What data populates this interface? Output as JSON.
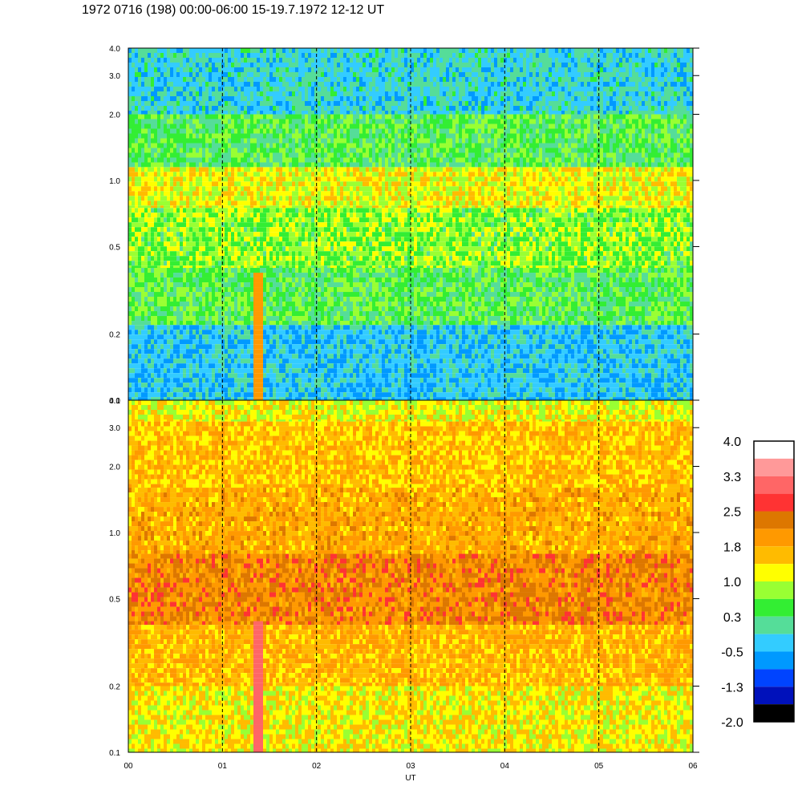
{
  "title": "1972 0716 (198) 00:00-06:00 15-19.7.1972  12-12 UT",
  "chart_data": [
    {
      "type": "heatmap",
      "panel": "top",
      "x_range": [
        0,
        6
      ],
      "y_scale": "log",
      "ylim": [
        0.1,
        4.0
      ],
      "y_ticks": [
        {
          "value": 0.1,
          "label": "0.1"
        },
        {
          "value": 0.2,
          "label": "0.2"
        },
        {
          "value": 0.5,
          "label": "0.5"
        },
        {
          "value": 1.0,
          "label": "1.0"
        },
        {
          "value": 2.0,
          "label": "2.0"
        },
        {
          "value": 3.0,
          "label": "3.0"
        },
        {
          "value": 4.0,
          "label": "4.0"
        }
      ],
      "bands": [
        {
          "y": [
            0.1,
            0.22
          ],
          "level": -0.5
        },
        {
          "y": [
            0.22,
            0.4
          ],
          "level": 0.3
        },
        {
          "y": [
            0.4,
            0.75
          ],
          "level": 0.6
        },
        {
          "y": [
            0.75,
            1.15
          ],
          "level": 1.0
        },
        {
          "y": [
            1.15,
            2.0
          ],
          "level": 0.3
        },
        {
          "y": [
            2.0,
            4.0
          ],
          "level": -0.3
        }
      ],
      "event_hour": 1.35,
      "event_level": 1.8
    },
    {
      "type": "heatmap",
      "panel": "bottom",
      "x_range": [
        0,
        6
      ],
      "y_scale": "log",
      "ylim": [
        0.1,
        4.0
      ],
      "y_ticks": [
        {
          "value": 0.1,
          "label": "0.1"
        },
        {
          "value": 0.2,
          "label": "0.2"
        },
        {
          "value": 0.5,
          "label": "0.5"
        },
        {
          "value": 1.0,
          "label": "1.0"
        },
        {
          "value": 2.0,
          "label": "2.0"
        },
        {
          "value": 3.0,
          "label": "3.0"
        },
        {
          "value": 4.0,
          "label": "4.0"
        }
      ],
      "bands": [
        {
          "y": [
            0.1,
            0.2
          ],
          "level": 1.1
        },
        {
          "y": [
            0.2,
            0.38
          ],
          "level": 1.5
        },
        {
          "y": [
            0.38,
            0.8
          ],
          "level": 2.0
        },
        {
          "y": [
            0.8,
            1.6
          ],
          "level": 1.6
        },
        {
          "y": [
            1.6,
            3.2
          ],
          "level": 1.4
        },
        {
          "y": [
            3.2,
            4.0
          ],
          "level": 1.0
        }
      ],
      "event_hour": 1.35,
      "event_level": 2.9
    }
  ],
  "x_ticks": [
    {
      "value": 0,
      "label": "00"
    },
    {
      "value": 1,
      "label": "01"
    },
    {
      "value": 2,
      "label": "02"
    },
    {
      "value": 3,
      "label": "03"
    },
    {
      "value": 4,
      "label": "04"
    },
    {
      "value": 5,
      "label": "05"
    },
    {
      "value": 6,
      "label": "06"
    }
  ],
  "xlabel": "UT",
  "colorbar": {
    "colors": [
      "#ffffff",
      "#ff9999",
      "#ff6666",
      "#ff3333",
      "#dd7700",
      "#ff9900",
      "#ffbb00",
      "#ffff00",
      "#99ff33",
      "#33ee33",
      "#55dd99",
      "#33ccff",
      "#0099ff",
      "#0044ff",
      "#0011bb",
      "#000000"
    ],
    "labels": [
      "4.0",
      "3.3",
      "2.5",
      "1.8",
      "1.0",
      "0.3",
      "-0.5",
      "-1.3",
      "-2.0"
    ],
    "levels_top_to_bottom": [
      4.0,
      3.5,
      3.0,
      2.5,
      2.2,
      1.8,
      1.4,
      1.0,
      0.7,
      0.3,
      0.0,
      -0.5,
      -0.8,
      -1.3,
      -1.6,
      -2.0
    ]
  }
}
